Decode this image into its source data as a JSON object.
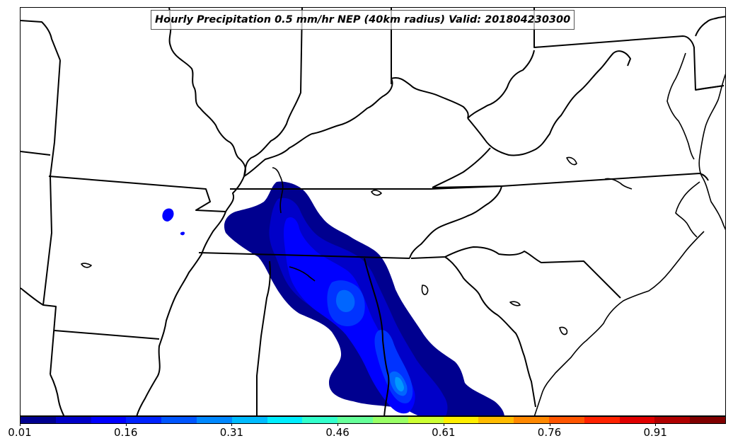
{
  "title": "Hourly Precipitation 0.5 mm/hr NEP (40km radius) Valid: 201804230300",
  "colorbar": {
    "colors": [
      "#00008f",
      "#0000c8",
      "#0000ff",
      "#0022ff",
      "#0055ff",
      "#0088ff",
      "#00bbff",
      "#00eeff",
      "#33ffcc",
      "#66ff99",
      "#99ff66",
      "#ccff33",
      "#ffee00",
      "#ffbb00",
      "#ff8800",
      "#ff5500",
      "#ff2200",
      "#e00000",
      "#b00000",
      "#800000"
    ],
    "tick_labels": [
      "0.01",
      "0.16",
      "0.31",
      "0.46",
      "0.61",
      "0.76",
      "0.91"
    ]
  },
  "map": {
    "region": "Southeastern United States",
    "projection_border": "state boundaries and coastlines"
  }
}
